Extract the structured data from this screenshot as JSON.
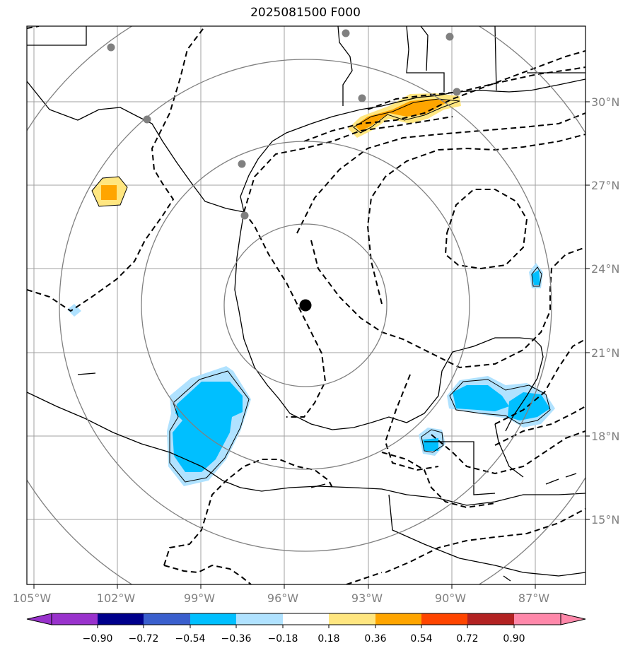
{
  "title": "2025081500 F000",
  "lon_labels": [
    "105°W",
    "102°W",
    "99°W",
    "96°W",
    "93°W",
    "90°W",
    "87°W"
  ],
  "lat_labels": [
    "30°N",
    "27°N",
    "24°N",
    "21°N",
    "18°N",
    "15°N"
  ],
  "colorbar": {
    "ticks": [
      "−0.90",
      "−0.72",
      "−0.54",
      "−0.36",
      "−0.18",
      "0.18",
      "0.36",
      "0.54",
      "0.72",
      "0.90"
    ],
    "colors": [
      "#9932cc",
      "#00008b",
      "#3a5fcd",
      "#00bfff",
      "#b0e2ff",
      "#ffffff",
      "#ffe680",
      "#ffa500",
      "#ff4500",
      "#b22222",
      "#ff88aa"
    ]
  },
  "colors": {
    "land_line": "#000000",
    "grid": "#a0a0a0",
    "range_rings": "#808080",
    "station": "#808080",
    "center": "#000000"
  },
  "center_marker": "storm-center"
}
